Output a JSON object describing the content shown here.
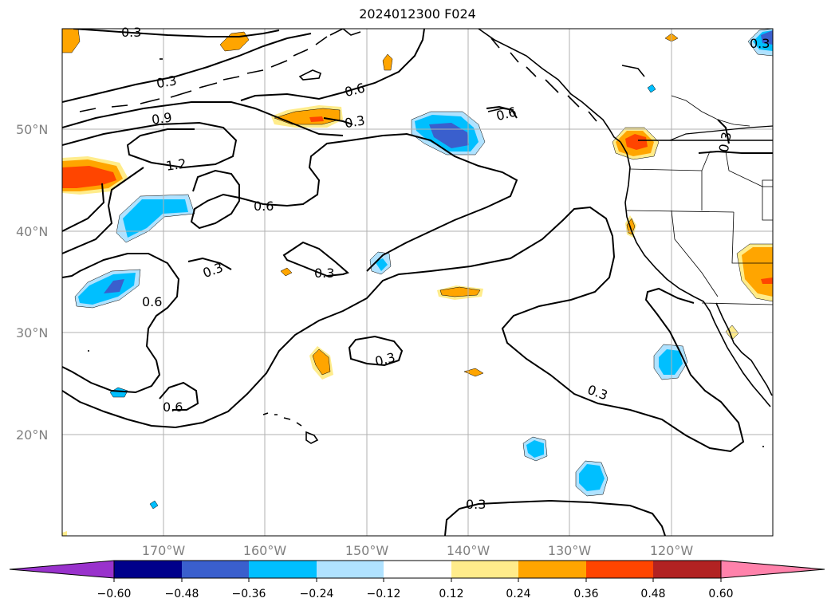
{
  "title": "2024012300 F024",
  "lat_labels": [
    "50°N",
    "40°N",
    "30°N",
    "20°N"
  ],
  "lon_labels": [
    "170°W",
    "160°W",
    "150°W",
    "140°W",
    "130°W",
    "120°W"
  ],
  "contour_labels": [
    "0.3",
    "0.3",
    "0.3",
    "0.9",
    "1.2",
    "0.6",
    "0.3",
    "0.6",
    "0.6",
    "0.3",
    "0.3",
    "0.6",
    "0.3",
    "0.6",
    "0.3",
    "0.3",
    "0.3"
  ],
  "colorbar": {
    "ticks": [
      "−0.60",
      "−0.48",
      "−0.36",
      "−0.24",
      "−0.12",
      "0.12",
      "0.24",
      "0.36",
      "0.48",
      "0.60"
    ],
    "colors": [
      "#9932cc",
      "#00008b",
      "#3a5fcd",
      "#00bfff",
      "#b0e2ff",
      "#ffffff",
      "#ffec8b",
      "#ffa500",
      "#ff4500",
      "#b22222",
      "#ff82ab"
    ]
  },
  "colors": {
    "orange": "#ffa500",
    "light_yellow": "#ffec8b",
    "red_orange": "#ff4500",
    "light_blue": "#b0e2ff",
    "deep_sky": "#00bfff",
    "royal_blue": "#3a5fcd"
  }
}
